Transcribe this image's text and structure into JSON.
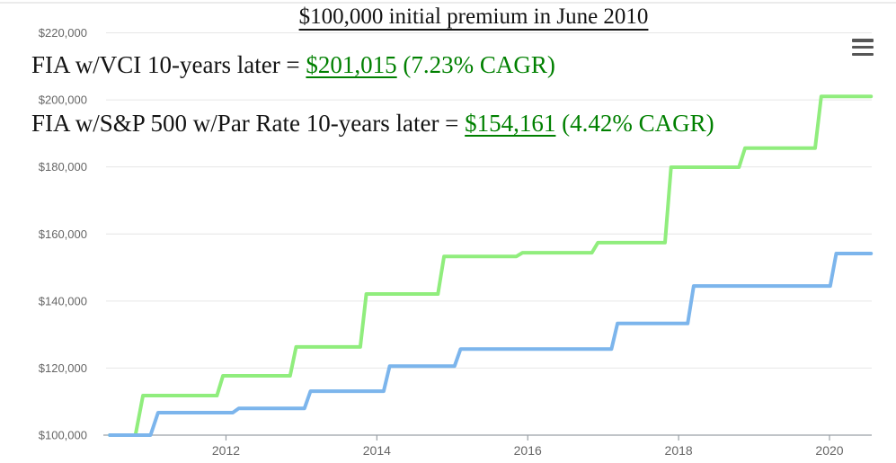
{
  "title": {
    "text": "$100,000 initial premium in June 2010"
  },
  "annotations": [
    {
      "prefix": "FIA w/VCI 10-years later = ",
      "value": "$201,015",
      "suffix": " (7.23% CAGR)"
    },
    {
      "prefix": "FIA w/S&P 500 w/Par Rate 10-years later = ",
      "value": "$154,161",
      "suffix": " (4.42% CAGR)"
    }
  ],
  "menu_icon": "hamburger-menu",
  "colors": {
    "annotation_green": "#008000",
    "title_text": "#141414",
    "axis_label": "#666666",
    "grid_line": "#e6e6e6",
    "axis_line": "#9aa0a6",
    "tick_mark": "#9aa0a6",
    "series_vci": "#90ed7d",
    "series_sp500": "#7cb5ec"
  },
  "chart_data": {
    "type": "line",
    "style": "step",
    "title": "$100,000 initial premium in June 2010",
    "xlabel": "",
    "ylabel": "",
    "grid": true,
    "legend_position": "none",
    "x_range": [
      2010.41,
      2020.56
    ],
    "y_range": [
      100000,
      220000
    ],
    "x_ticks": [
      {
        "value": 2012,
        "label": "2012"
      },
      {
        "value": 2014,
        "label": "2014"
      },
      {
        "value": 2016,
        "label": "2016"
      },
      {
        "value": 2018,
        "label": "2018"
      },
      {
        "value": 2020,
        "label": "2020"
      }
    ],
    "y_ticks": [
      {
        "value": 100000,
        "label": "$100,000"
      },
      {
        "value": 120000,
        "label": "$120,000"
      },
      {
        "value": 140000,
        "label": "$140,000"
      },
      {
        "value": 160000,
        "label": "$160,000"
      },
      {
        "value": 180000,
        "label": "$180,000"
      },
      {
        "value": 200000,
        "label": "$200,000"
      },
      {
        "value": 220000,
        "label": "$220,000"
      }
    ],
    "series": [
      {
        "name": "FIA w/VCI",
        "color": "#90ed7d",
        "final_value": 201015,
        "cagr": "7.23%",
        "points": [
          [
            2010.46,
            100000
          ],
          [
            2010.8,
            100000
          ],
          [
            2010.9,
            111800
          ],
          [
            2011.88,
            111800
          ],
          [
            2011.96,
            117700
          ],
          [
            2012.85,
            117700
          ],
          [
            2012.93,
            126300
          ],
          [
            2013.78,
            126300
          ],
          [
            2013.86,
            142100
          ],
          [
            2014.81,
            142100
          ],
          [
            2014.89,
            153300
          ],
          [
            2015.85,
            153300
          ],
          [
            2015.93,
            154400
          ],
          [
            2016.85,
            154400
          ],
          [
            2016.93,
            157400
          ],
          [
            2017.82,
            157400
          ],
          [
            2017.9,
            179900
          ],
          [
            2018.8,
            179900
          ],
          [
            2018.88,
            185600
          ],
          [
            2019.81,
            185600
          ],
          [
            2019.89,
            201015
          ],
          [
            2020.55,
            201015
          ]
        ]
      },
      {
        "name": "FIA w/S&P 500 w/Par Rate",
        "color": "#7cb5ec",
        "final_value": 154161,
        "cagr": "4.42%",
        "points": [
          [
            2010.46,
            100000
          ],
          [
            2011.0,
            100000
          ],
          [
            2011.1,
            106700
          ],
          [
            2012.09,
            106700
          ],
          [
            2012.17,
            108000
          ],
          [
            2013.04,
            108000
          ],
          [
            2013.12,
            113100
          ],
          [
            2014.09,
            113100
          ],
          [
            2014.17,
            120600
          ],
          [
            2015.03,
            120600
          ],
          [
            2015.11,
            125700
          ],
          [
            2017.11,
            125700
          ],
          [
            2017.19,
            133300
          ],
          [
            2018.12,
            133300
          ],
          [
            2018.2,
            144500
          ],
          [
            2020.01,
            144500
          ],
          [
            2020.09,
            154161
          ],
          [
            2020.55,
            154161
          ]
        ]
      }
    ]
  }
}
